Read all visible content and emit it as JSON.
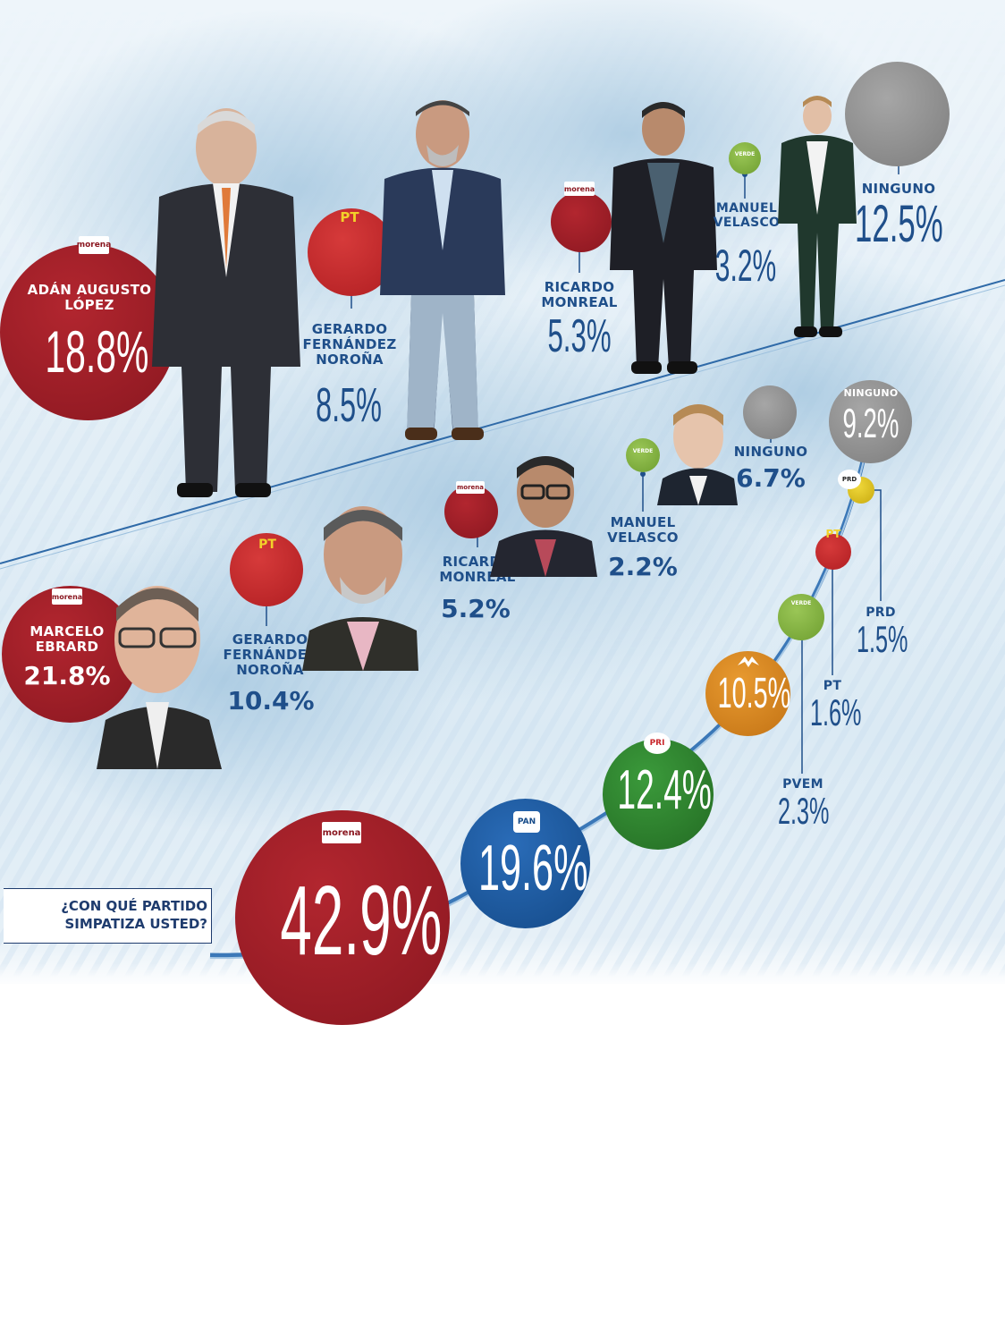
{
  "round1": {
    "adan": {
      "name": "ADÁN AUGUSTO LÓPEZ",
      "pct": "18.8%",
      "party": "morena"
    },
    "gerardo": {
      "name": "GERARDO FERNÁNDEZ NOROÑA",
      "pct": "8.5%",
      "party": "PT"
    },
    "ricardo": {
      "name": "RICARDO MONREAL",
      "pct": "5.3%",
      "party": "morena"
    },
    "manuel": {
      "name": "MANUEL VELASCO",
      "pct": "3.2%",
      "party": "VERDE"
    },
    "ninguno": {
      "name": "NINGUNO",
      "pct": "12.5%"
    }
  },
  "round2": {
    "marcelo": {
      "name": "MARCELO EBRARD",
      "pct": "21.8%",
      "party": "morena"
    },
    "gerardo": {
      "name": "GERARDO FERNÁNDEZ NOROÑA",
      "pct": "10.4%",
      "party": "PT"
    },
    "ricardo": {
      "name": "RICARDO MONREAL",
      "pct": "5.2%",
      "party": "morena"
    },
    "manuel": {
      "name": "MANUEL VELASCO",
      "pct": "2.2%",
      "party": "VERDE"
    },
    "ninguno": {
      "name": "NINGUNO",
      "pct": "6.7%"
    }
  },
  "parties": {
    "question": "¿CON QUÉ PARTIDO SIMPATIZA USTED?",
    "ninguno": {
      "name": "NINGUNO",
      "pct": "9.2%"
    },
    "prd": {
      "name": "PRD",
      "pct": "1.5%",
      "logo": "PRD"
    },
    "pt": {
      "name": "PT",
      "pct": "1.6%",
      "logo": "PT"
    },
    "pvem": {
      "name": "PVEM",
      "pct": "2.3%",
      "logo": "VERDE"
    },
    "mc": {
      "pct": "10.5%"
    },
    "pri": {
      "pct": "12.4%",
      "logo": "PRI"
    },
    "pan": {
      "pct": "19.6%",
      "logo": "PAN"
    },
    "morena": {
      "pct": "42.9%",
      "logo": "morena"
    }
  },
  "colors": {
    "morena": "#9b1b24",
    "pt": "#c8262b",
    "navy": "#1f3c6e",
    "verde": "#7fae3c",
    "gray": "#8e8e8e",
    "pri": "#2e7d2e",
    "pan": "#1c5aa0",
    "mc": "#d8861c",
    "prd": "#e0c41a",
    "label_blue": "#1f4f8a"
  }
}
